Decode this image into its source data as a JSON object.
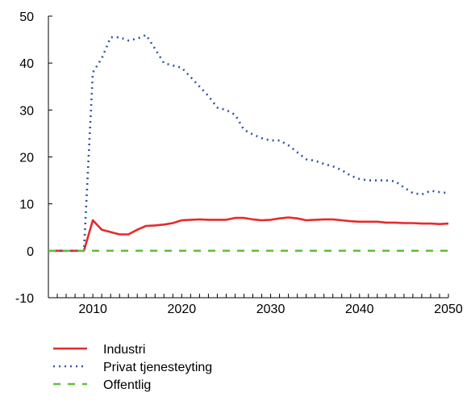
{
  "chart_data": {
    "type": "line",
    "title": "",
    "xlabel": "",
    "ylabel": "",
    "xlim": [
      2005,
      2050
    ],
    "ylim": [
      -10,
      50
    ],
    "yticks": [
      -10,
      0,
      10,
      20,
      30,
      40,
      50
    ],
    "xticks": [
      2010,
      2020,
      2030,
      2040,
      2050
    ],
    "grid": false,
    "legend_position": "bottom-left",
    "x": [
      2005,
      2006,
      2007,
      2008,
      2009,
      2010,
      2011,
      2012,
      2013,
      2014,
      2015,
      2016,
      2017,
      2018,
      2019,
      2020,
      2021,
      2022,
      2023,
      2024,
      2025,
      2026,
      2027,
      2028,
      2029,
      2030,
      2031,
      2032,
      2033,
      2034,
      2035,
      2036,
      2037,
      2038,
      2039,
      2040,
      2041,
      2042,
      2043,
      2044,
      2045,
      2046,
      2047,
      2048,
      2049,
      2050
    ],
    "series": [
      {
        "name": "Industri",
        "color": "#e8292a",
        "style": "solid",
        "values": [
          0,
          0,
          0,
          0,
          0,
          6.5,
          4.5,
          4,
          3.5,
          3.5,
          4.5,
          5.3,
          5.4,
          5.6,
          5.9,
          6.5,
          6.6,
          6.7,
          6.6,
          6.6,
          6.6,
          7.0,
          7.0,
          6.7,
          6.5,
          6.6,
          6.9,
          7.1,
          6.9,
          6.5,
          6.6,
          6.7,
          6.7,
          6.5,
          6.3,
          6.2,
          6.2,
          6.2,
          6.0,
          6.0,
          5.9,
          5.9,
          5.8,
          5.8,
          5.7,
          5.8
        ]
      },
      {
        "name": "Privat tjenesteyting",
        "color": "#2f56a6",
        "style": "dotted",
        "values": [
          0,
          0,
          0,
          0,
          0,
          38,
          41,
          45.5,
          45.5,
          44.8,
          45.2,
          46,
          43,
          40,
          39.5,
          39,
          37,
          35,
          33,
          30.5,
          30,
          29,
          25.8,
          24.8,
          24,
          23.5,
          23.5,
          22.5,
          21,
          19.5,
          19.2,
          18.5,
          18,
          17.2,
          16,
          15.3,
          15.0,
          15.0,
          15.0,
          14.8,
          13.5,
          12.3,
          12.0,
          12.8,
          12.5,
          12.3
        ]
      },
      {
        "name": "Offentlig",
        "color": "#5ec13a",
        "style": "dashed",
        "values": [
          0,
          0,
          0,
          0,
          0,
          0,
          0,
          0,
          0,
          0,
          0,
          0,
          0,
          0,
          0,
          0,
          0,
          0,
          0,
          0,
          0,
          0,
          0,
          0,
          0,
          0,
          0,
          0,
          0,
          0,
          0,
          0,
          0,
          0,
          0,
          0,
          0,
          0,
          0,
          0,
          0,
          0,
          0,
          0,
          0,
          0
        ]
      }
    ]
  }
}
